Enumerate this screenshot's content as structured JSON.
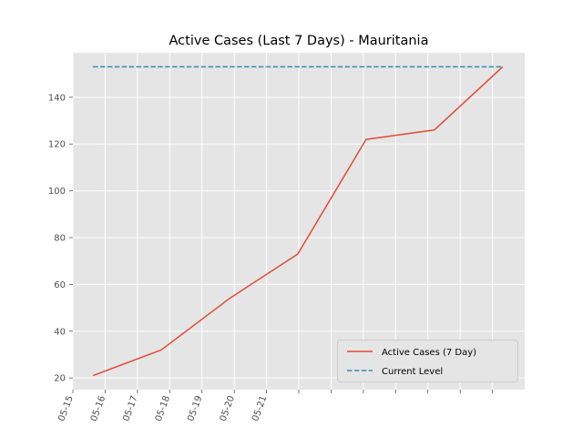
{
  "chart_data": {
    "type": "line",
    "title": "Active Cases (Last 7 Days) - Mauritania",
    "xlabel": "",
    "ylabel": "",
    "x_dates": [
      "2020-05-15",
      "2020-05-16",
      "2020-05-17",
      "2020-05-18",
      "2020-05-19",
      "2020-05-20",
      "2020-05-21"
    ],
    "x_tick_labels": [
      "05-15",
      "05-16",
      "05-17",
      "05-18",
      "05-19",
      "05-20",
      "05-21"
    ],
    "y_ticks": [
      20,
      40,
      60,
      80,
      100,
      120,
      140
    ],
    "ylim": [
      15,
      159
    ],
    "grid": true,
    "legend_position": "lower-right",
    "series": [
      {
        "name": "Active Cases (7 Day)",
        "style": "solid",
        "color": "#e24a33",
        "values": [
          21,
          32,
          54,
          73,
          122,
          126,
          153
        ]
      },
      {
        "name": "Current Level",
        "style": "dashed",
        "color": "#348abd",
        "values": [
          153,
          153
        ]
      }
    ]
  }
}
